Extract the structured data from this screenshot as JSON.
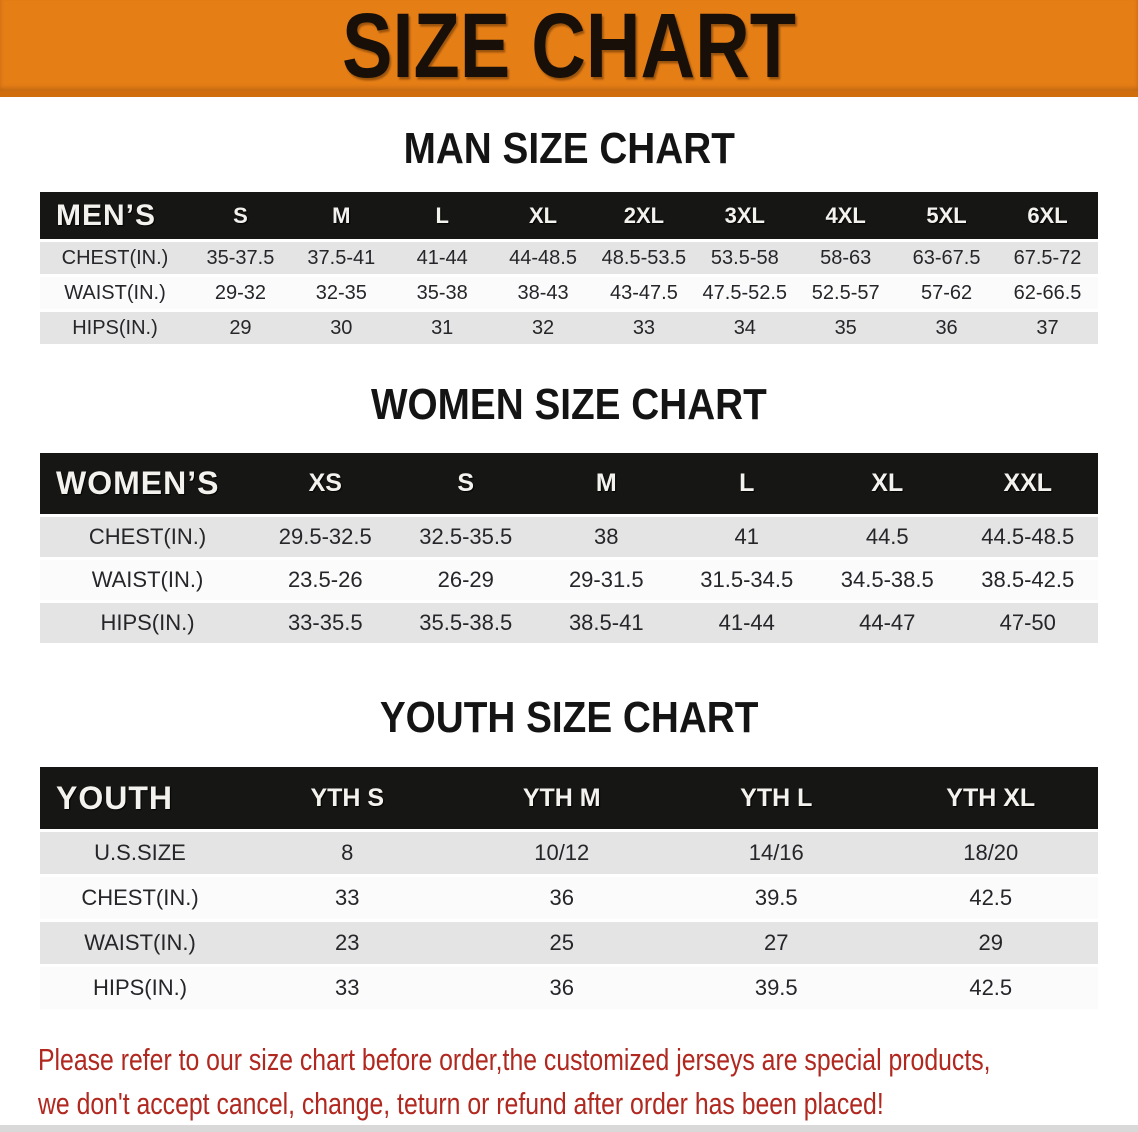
{
  "banner": {
    "title": "SIZE CHART",
    "bg_color": "#E67E16",
    "text_color": "#181008"
  },
  "men_section": {
    "heading": "MAN SIZE CHART",
    "table": {
      "header": [
        "MEN’S",
        "S",
        "M",
        "L",
        "XL",
        "2XL",
        "3XL",
        "4XL",
        "5XL",
        "6XL"
      ],
      "rows": [
        {
          "label": "CHEST(IN.)",
          "values": [
            "35-37.5",
            "37.5-41",
            "41-44",
            "44-48.5",
            "48.5-53.5",
            "53.5-58",
            "58-63",
            "63-67.5",
            "67.5-72"
          ]
        },
        {
          "label": "WAIST(IN.)",
          "values": [
            "29-32",
            "32-35",
            "35-38",
            "38-43",
            "43-47.5",
            "47.5-52.5",
            "52.5-57",
            "57-62",
            "62-66.5"
          ]
        },
        {
          "label": "HIPS(IN.)",
          "values": [
            "29",
            "30",
            "31",
            "32",
            "33",
            "34",
            "35",
            "36",
            "37"
          ]
        }
      ]
    }
  },
  "women_section": {
    "heading": "WOMEN SIZE CHART",
    "table": {
      "header": [
        "WOMEN’S",
        "XS",
        "S",
        "M",
        "L",
        "XL",
        "XXL"
      ],
      "rows": [
        {
          "label": "CHEST(IN.)",
          "values": [
            "29.5-32.5",
            "32.5-35.5",
            "38",
            "41",
            "44.5",
            "44.5-48.5"
          ]
        },
        {
          "label": "WAIST(IN.)",
          "values": [
            "23.5-26",
            "26-29",
            "29-31.5",
            "31.5-34.5",
            "34.5-38.5",
            "38.5-42.5"
          ]
        },
        {
          "label": "HIPS(IN.)",
          "values": [
            "33-35.5",
            "35.5-38.5",
            "38.5-41",
            "41-44",
            "44-47",
            "47-50"
          ]
        }
      ]
    }
  },
  "youth_section": {
    "heading": "YOUTH SIZE CHART",
    "table": {
      "header": [
        "YOUTH",
        "YTH S",
        "YTH M",
        "YTH L",
        "YTH XL"
      ],
      "rows": [
        {
          "label": "U.S.SIZE",
          "values": [
            "8",
            "10/12",
            "14/16",
            "18/20"
          ]
        },
        {
          "label": "CHEST(IN.)",
          "values": [
            "33",
            "36",
            "39.5",
            "42.5"
          ]
        },
        {
          "label": "WAIST(IN.)",
          "values": [
            "23",
            "25",
            "27",
            "29"
          ]
        },
        {
          "label": "HIPS(IN.)",
          "values": [
            "33",
            "36",
            "39.5",
            "42.5"
          ]
        }
      ]
    }
  },
  "disclaimer": {
    "color": "#B0281F",
    "lines": [
      "Please refer to our size chart before order,the customized jerseys are special products,",
      "we don't accept cancel, change, teturn or refund after order has been placed!"
    ]
  },
  "table_style": {
    "header_bg": "#161614",
    "row_gray": "#E4E4E4",
    "row_white": "#FBFBFB"
  }
}
